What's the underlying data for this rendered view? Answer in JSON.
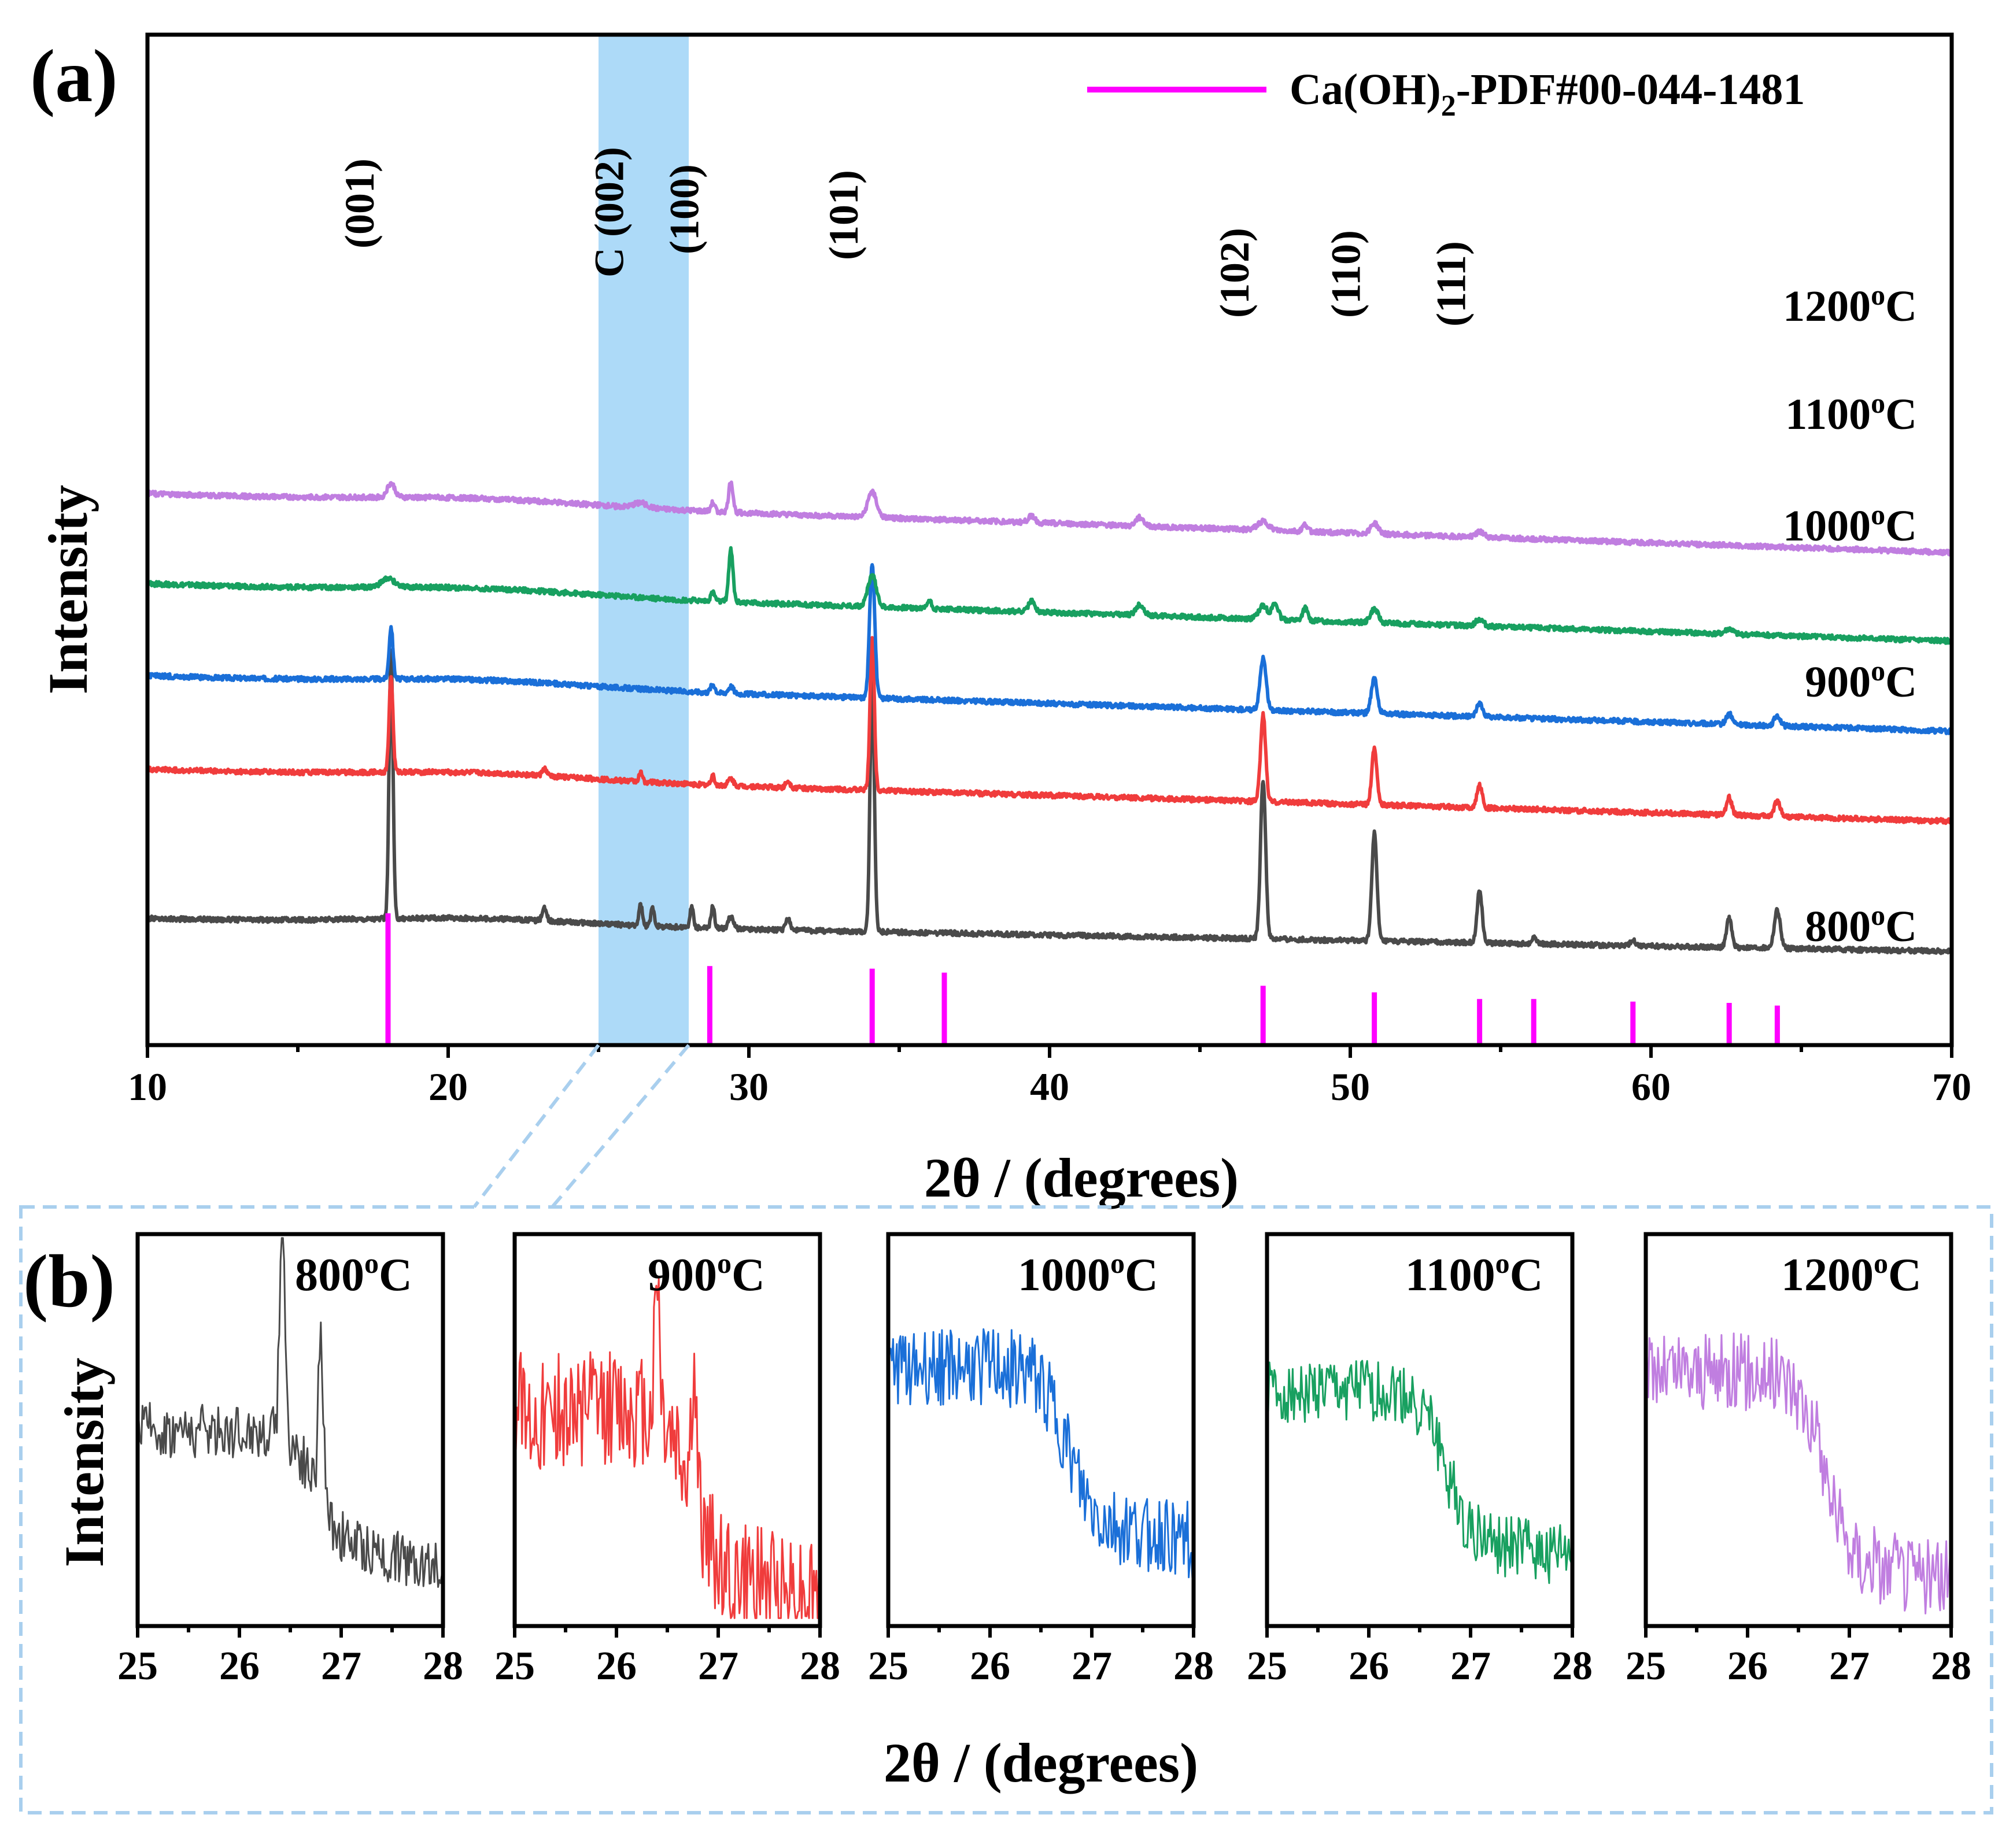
{
  "chart_data": [
    {
      "panel": "(a)",
      "type": "line",
      "xlabel": "2θ / (degrees)",
      "ylabel": "Intensity",
      "xlim": [
        10,
        70
      ],
      "xticks": [
        10,
        20,
        30,
        40,
        50,
        60,
        70
      ],
      "highlight_band": {
        "label": "C (002)",
        "range": [
          25,
          28
        ]
      },
      "legend": {
        "text_main": "Ca(OH)",
        "text_sub": "2",
        "text_tail": "-PDF#00-044-1481",
        "color": "#ff00ff",
        "position": "top-right"
      },
      "reference_peaks": {
        "name": "Ca(OH)2-PDF#00-044-1481",
        "color": "#ff00ff",
        "positions": [
          18.0,
          28.7,
          34.1,
          36.5,
          47.1,
          50.8,
          54.3,
          56.1,
          59.4,
          62.6,
          64.2
        ],
        "relative_heights": [
          1.0,
          0.6,
          0.58,
          0.55,
          0.45,
          0.4,
          0.35,
          0.35,
          0.33,
          0.32,
          0.3
        ]
      },
      "peak_labels": [
        {
          "text": "(001)",
          "x": 18.0
        },
        {
          "text": "C (002)",
          "x": 26.3
        },
        {
          "text": "(100)",
          "x": 28.8
        },
        {
          "text": "(101)",
          "x": 34.1
        },
        {
          "text": "(102)",
          "x": 47.1
        },
        {
          "text": "(110)",
          "x": 50.8
        },
        {
          "text": "(111)",
          "x": 54.3
        }
      ],
      "series": [
        {
          "name": "800°C",
          "label_main": "800",
          "label_tail": "C",
          "color": "#4a4a4a",
          "baseline_start": 0.52,
          "baseline_end": 0.33,
          "peaks": [
            [
              18.1,
              1.55,
              0.09
            ],
            [
              23.2,
              0.07,
              0.1
            ],
            [
              26.4,
              0.12,
              0.08
            ],
            [
              26.8,
              0.11,
              0.08
            ],
            [
              28.1,
              0.12,
              0.08
            ],
            [
              28.8,
              0.13,
              0.08
            ],
            [
              29.4,
              0.07,
              0.12
            ],
            [
              31.3,
              0.07,
              0.1
            ],
            [
              34.1,
              1.45,
              0.1
            ],
            [
              47.1,
              0.92,
              0.12
            ],
            [
              50.8,
              0.62,
              0.12
            ],
            [
              54.3,
              0.3,
              0.12
            ],
            [
              56.1,
              0.04,
              0.1
            ],
            [
              59.4,
              0.04,
              0.1
            ],
            [
              62.6,
              0.17,
              0.12
            ],
            [
              64.2,
              0.22,
              0.14
            ]
          ]
        },
        {
          "name": "900°C",
          "label_main": "900",
          "label_tail": "C",
          "color": "#f03c3c",
          "baseline_start": 1.38,
          "baseline_end": 1.08,
          "peaks": [
            [
              18.1,
              0.55,
              0.09
            ],
            [
              23.2,
              0.04,
              0.1
            ],
            [
              26.4,
              0.05,
              0.08
            ],
            [
              28.8,
              0.06,
              0.08
            ],
            [
              29.4,
              0.04,
              0.12
            ],
            [
              31.3,
              0.04,
              0.1
            ],
            [
              34.1,
              0.88,
              0.1
            ],
            [
              47.1,
              0.5,
              0.12
            ],
            [
              50.8,
              0.33,
              0.12
            ],
            [
              54.3,
              0.13,
              0.12
            ],
            [
              62.6,
              0.1,
              0.12
            ],
            [
              64.2,
              0.09,
              0.14
            ]
          ]
        },
        {
          "name": "1000°C",
          "label_main": "1000",
          "label_tail": "C",
          "color": "#1a6fd8",
          "baseline_start": 1.92,
          "baseline_end": 1.6,
          "peaks": [
            [
              18.1,
              0.3,
              0.09
            ],
            [
              28.8,
              0.05,
              0.1
            ],
            [
              29.4,
              0.04,
              0.12
            ],
            [
              34.1,
              0.78,
              0.12
            ],
            [
              47.1,
              0.3,
              0.14
            ],
            [
              50.8,
              0.2,
              0.14
            ],
            [
              54.3,
              0.08,
              0.14
            ],
            [
              62.6,
              0.06,
              0.14
            ],
            [
              64.2,
              0.06,
              0.14
            ]
          ]
        },
        {
          "name": "1100°C",
          "label_main": "1100",
          "label_tail": "C",
          "color": "#18a060",
          "baseline_start": 2.45,
          "baseline_end": 2.12,
          "peaks": [
            [
              18.0,
              0.05,
              0.3
            ],
            [
              28.8,
              0.05,
              0.1
            ],
            [
              29.4,
              0.3,
              0.1
            ],
            [
              34.1,
              0.18,
              0.2
            ],
            [
              36.0,
              0.05,
              0.1
            ],
            [
              39.4,
              0.06,
              0.15
            ],
            [
              43.0,
              0.06,
              0.18
            ],
            [
              47.1,
              0.08,
              0.2
            ],
            [
              47.5,
              0.09,
              0.15
            ],
            [
              48.5,
              0.07,
              0.12
            ],
            [
              50.8,
              0.08,
              0.18
            ],
            [
              54.3,
              0.04,
              0.18
            ],
            [
              62.6,
              0.03,
              0.18
            ]
          ]
        },
        {
          "name": "1200°C",
          "label_main": "1200",
          "label_tail": "C",
          "color": "#c07ee0",
          "baseline_start": 2.97,
          "baseline_end": 2.63,
          "peaks": [
            [
              18.1,
              0.08,
              0.18
            ],
            [
              26.4,
              0.03,
              0.3
            ],
            [
              28.8,
              0.05,
              0.1
            ],
            [
              29.4,
              0.18,
              0.1
            ],
            [
              34.1,
              0.15,
              0.2
            ],
            [
              39.4,
              0.04,
              0.15
            ],
            [
              43.0,
              0.05,
              0.18
            ],
            [
              47.1,
              0.05,
              0.25
            ],
            [
              48.5,
              0.04,
              0.12
            ],
            [
              50.8,
              0.06,
              0.18
            ],
            [
              54.3,
              0.03,
              0.2
            ]
          ]
        }
      ]
    },
    {
      "panel": "(b)",
      "type": "line",
      "xlabel": "2θ / (degrees)",
      "ylabel": "Intensity",
      "xlim": [
        25,
        28
      ],
      "xticks": [
        25,
        26,
        27,
        28
      ],
      "insets": [
        {
          "name": "800°C",
          "label_main": "800",
          "label_tail": "C",
          "color": "#4a4a4a",
          "base_left": 0.5,
          "base_right": 0.2,
          "step": 0.5,
          "noise": 0.07,
          "peaks": [
            [
              26.42,
              0.62,
              0.035
            ],
            [
              26.8,
              0.42,
              0.035
            ]
          ]
        },
        {
          "name": "900°C",
          "label_main": "900",
          "label_tail": "C",
          "color": "#f03c3c",
          "base_left": 0.55,
          "base_right": 0.12,
          "step": 0.5,
          "noise": 0.15,
          "peaks": [
            [
              26.4,
              0.38,
              0.035
            ],
            [
              26.76,
              0.3,
              0.035
            ]
          ]
        },
        {
          "name": "1000°C",
          "label_main": "1000",
          "label_tail": "C",
          "color": "#1a6fd8",
          "base_left": 0.66,
          "base_right": 0.26,
          "step": 0.62,
          "noise": 0.1,
          "peaks": []
        },
        {
          "name": "1100°C",
          "label_main": "1100",
          "label_tail": "C",
          "color": "#18a060",
          "base_left": 0.6,
          "base_right": 0.22,
          "step": 0.5,
          "noise": 0.08,
          "peaks": []
        },
        {
          "name": "1200°C",
          "label_main": "1200",
          "label_tail": "C",
          "color": "#c07ee0",
          "base_left": 0.65,
          "base_right": 0.16,
          "step": 0.6,
          "noise": 0.1,
          "peaks": []
        }
      ]
    }
  ],
  "labels": {
    "panel_a": "(a)",
    "panel_b": "(b)",
    "degree_sup": "o"
  }
}
